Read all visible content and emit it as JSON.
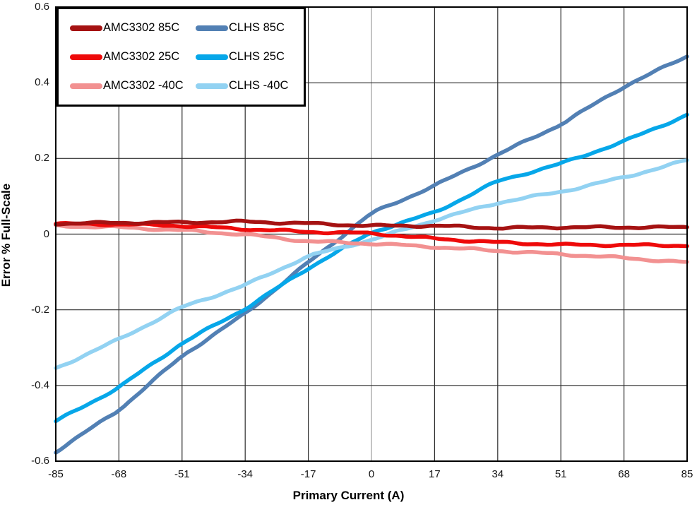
{
  "chart_data": {
    "type": "line",
    "title": "",
    "xlabel": "Primary Current (A)",
    "ylabel": "Error % Full-Scale",
    "xlim": [
      -85,
      85
    ],
    "ylim": [
      -0.6,
      0.6
    ],
    "grid": true,
    "legend_position": "top-left-inside",
    "x": [
      -85,
      -68,
      -51,
      -34,
      -17,
      0,
      17,
      34,
      51,
      68,
      85
    ],
    "x_tick_labels": [
      "-85",
      "-68",
      "-51",
      "-34",
      "-17",
      "0",
      "17",
      "34",
      "51",
      "68",
      "85"
    ],
    "y_ticks": [
      0.6,
      0.4,
      0.2,
      0,
      -0.2,
      -0.4,
      -0.6
    ],
    "y_tick_labels": [
      "0.6",
      "0.4",
      "0.2",
      "0",
      "-0.2",
      "-0.4",
      "-0.6"
    ],
    "series": [
      {
        "name": "AMC3302 85C",
        "color": "#A51212",
        "values": [
          0.028,
          0.03,
          0.031,
          0.033,
          0.028,
          0.022,
          0.022,
          0.016,
          0.018,
          0.018,
          0.018
        ]
      },
      {
        "name": "AMC3302 25C",
        "color": "#EE0A0A",
        "values": [
          0.027,
          0.026,
          0.022,
          0.013,
          0.006,
          0.002,
          -0.012,
          -0.022,
          -0.028,
          -0.029,
          -0.03
        ]
      },
      {
        "name": "AMC3302 -40C",
        "color": "#F29191",
        "values": [
          0.022,
          0.018,
          0.01,
          -0.001,
          -0.019,
          -0.025,
          -0.034,
          -0.044,
          -0.053,
          -0.063,
          -0.075
        ]
      },
      {
        "name": "CLHS 85C",
        "color": "#5280B4",
        "values": [
          -0.575,
          -0.465,
          -0.322,
          -0.21,
          -0.075,
          0.055,
          0.128,
          0.21,
          0.29,
          0.39,
          0.47
        ]
      },
      {
        "name": "CLHS 25C",
        "color": "#06A7E9",
        "values": [
          -0.495,
          -0.405,
          -0.288,
          -0.197,
          -0.09,
          0.005,
          0.057,
          0.14,
          0.186,
          0.245,
          0.315
        ]
      },
      {
        "name": "CLHS -40C",
        "color": "#92D2F2",
        "values": [
          -0.355,
          -0.278,
          -0.193,
          -0.135,
          -0.058,
          -0.015,
          0.037,
          0.083,
          0.112,
          0.15,
          0.195
        ]
      }
    ],
    "draw_order": [
      "CLHS 85C",
      "CLHS 25C",
      "CLHS -40C",
      "AMC3302 -40C",
      "AMC3302 25C",
      "AMC3302 85C"
    ],
    "legend_rows": [
      [
        "AMC3302 85C",
        "CLHS 85C"
      ],
      [
        "AMC3302 25C",
        "CLHS 25C"
      ],
      [
        "AMC3302 -40C",
        "CLHS -40C"
      ]
    ],
    "colors": {
      "plot_border": "#000000",
      "gridline": "#2e2e2e",
      "zero_vertical_gridline": "#9c9c9c",
      "tick_label": "#141414",
      "background": "#ffffff"
    }
  }
}
